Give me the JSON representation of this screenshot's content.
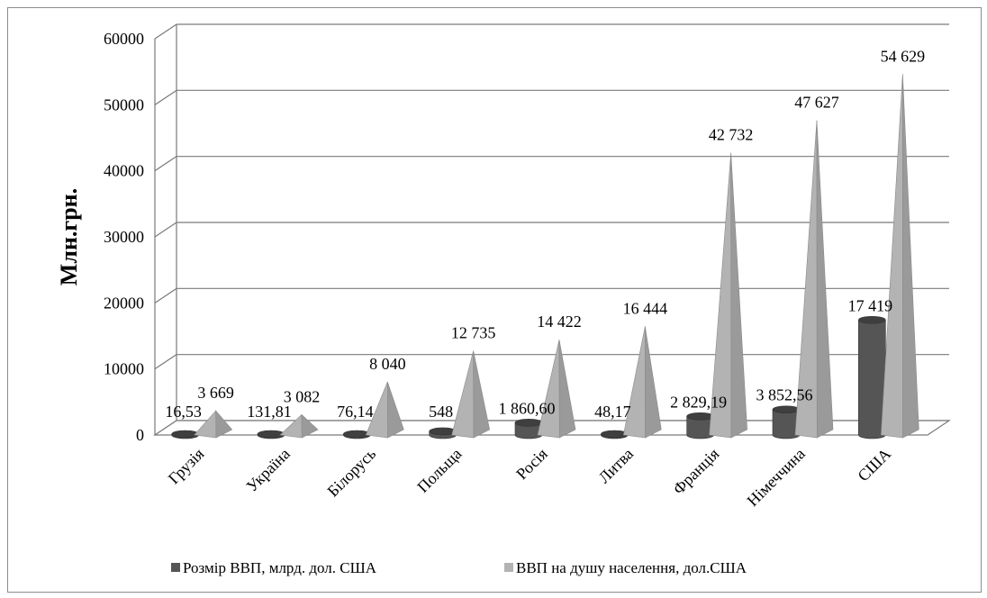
{
  "chart_data": {
    "type": "bar",
    "subtype": "3d-cylinder-and-pyramid",
    "title": "",
    "xlabel": "",
    "ylabel": "Млн.грн.",
    "ylim": [
      0,
      60000
    ],
    "yticks": [
      "0",
      "10000",
      "20000",
      "30000",
      "40000",
      "50000",
      "60000"
    ],
    "grid": true,
    "legend_position": "bottom",
    "categories": [
      "Грузія",
      "Україна",
      "Білорусь",
      "Польща",
      "Росія",
      "Литва",
      "Франція",
      "Німеччина",
      "США"
    ],
    "series": [
      {
        "name": "Розмір ВВП, млрд. дол. США",
        "color": "#555555",
        "values": [
          16.53,
          131.81,
          76.14,
          548,
          1860.6,
          48.17,
          2829.19,
          3852.56,
          17419
        ],
        "labels": [
          "16,53",
          "131,81",
          "76,14",
          "548",
          "1 860,60",
          "48,17",
          "2 829,19",
          "3 852,56",
          "17 419"
        ]
      },
      {
        "name": "ВВП на душу населення, дол.США",
        "color": "#b3b3b3",
        "values": [
          3669,
          3082,
          8040,
          12735,
          14422,
          16444,
          42732,
          47627,
          54629
        ],
        "labels": [
          "3 669",
          "3 082",
          "8 040",
          "12 735",
          "14 422",
          "16 444",
          "42 732",
          "47 627",
          "54 629"
        ]
      }
    ]
  }
}
